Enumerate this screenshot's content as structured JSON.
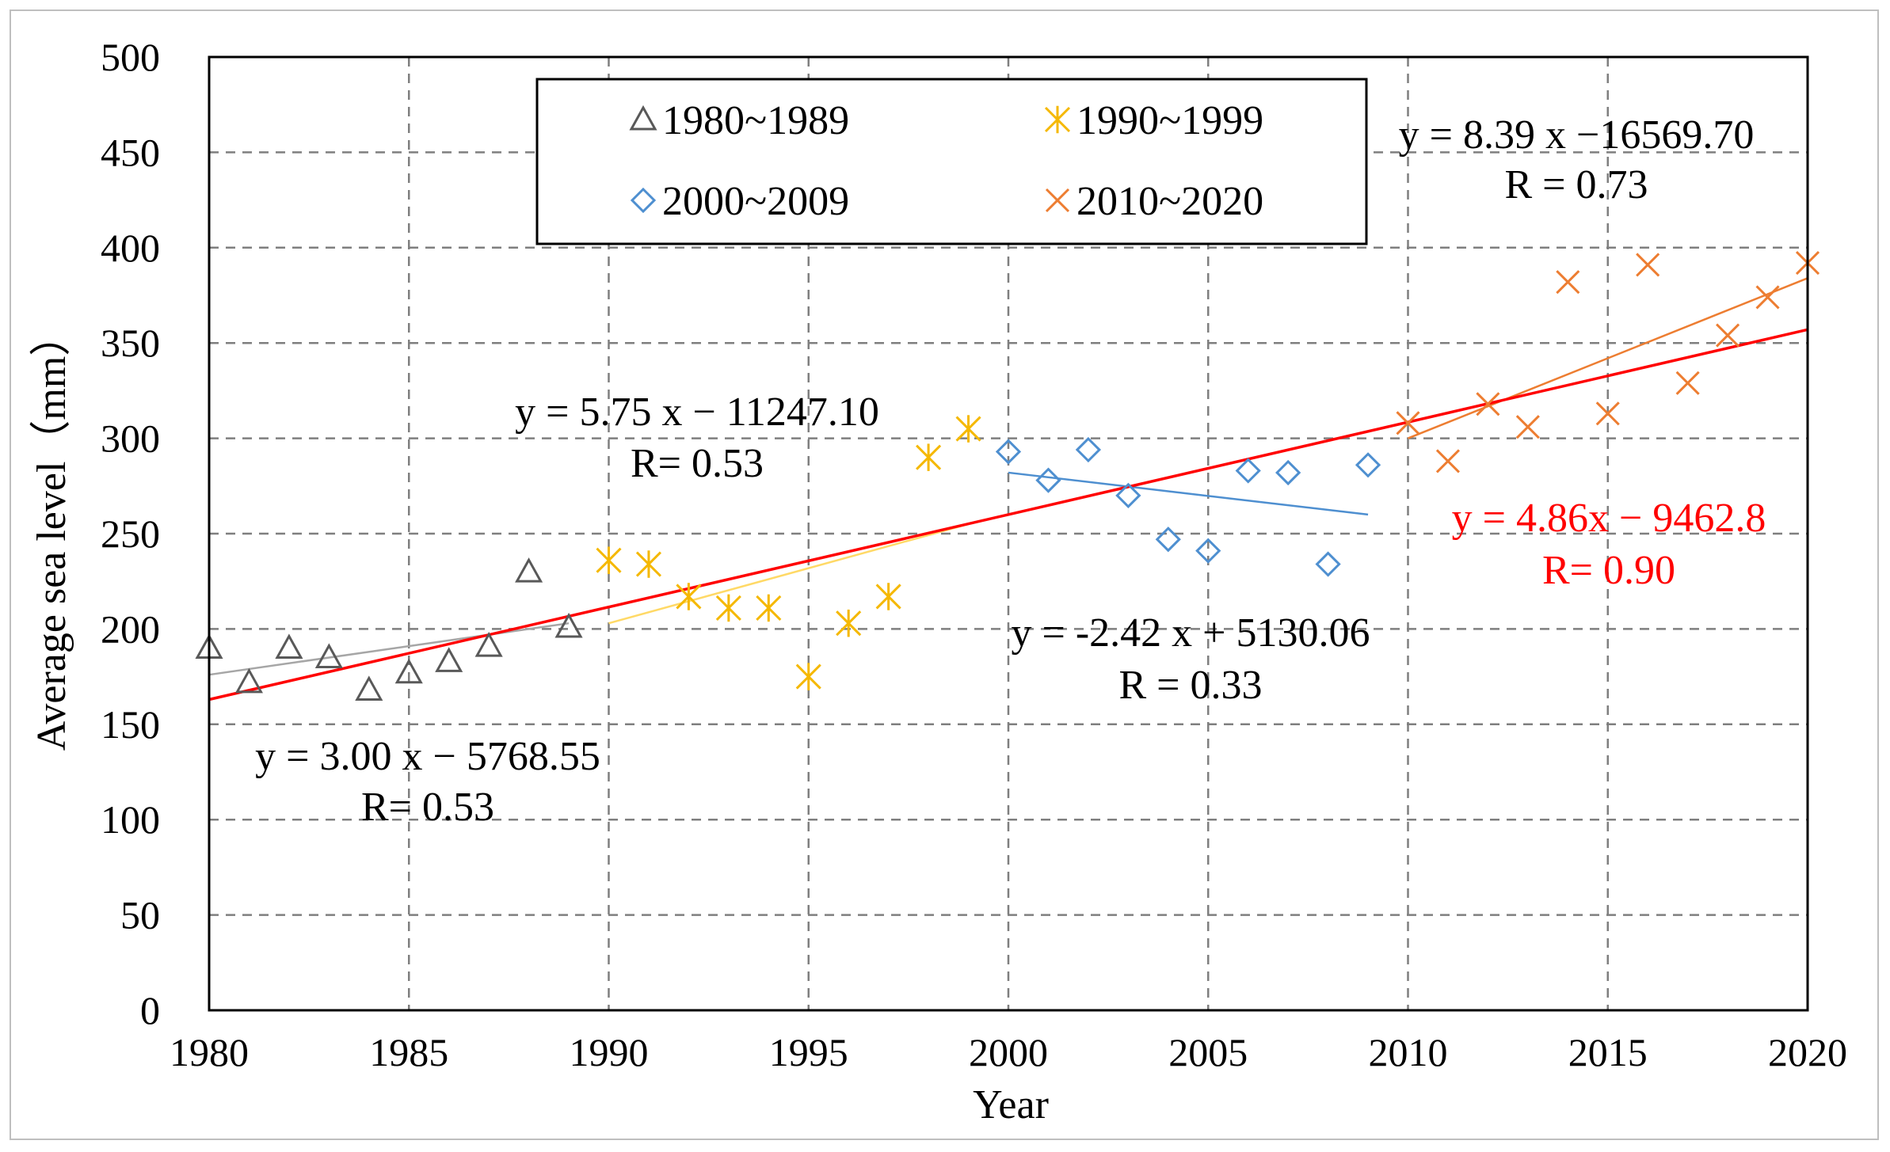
{
  "chart_data": {
    "type": "scatter",
    "title": "",
    "xlabel": "Year",
    "ylabel": "Average sea level（mm）",
    "xlim": [
      1980,
      2020
    ],
    "ylim": [
      0,
      500
    ],
    "xticks": [
      "1980",
      "1985",
      "1990",
      "1995",
      "2000",
      "2005",
      "2010",
      "2015",
      "2020"
    ],
    "yticks": [
      "0",
      "50",
      "100",
      "150",
      "200",
      "250",
      "300",
      "350",
      "400",
      "450",
      "500"
    ],
    "grid": true,
    "legend_position": "top-center",
    "colors": {
      "s1980": "#595959",
      "s1990": "#f5b800",
      "s2000": "#4e8fd0",
      "s2010": "#ed7d31",
      "overall": "#ff0000",
      "trend1980": "#a6a6a6",
      "trend1990": "#ffd966"
    },
    "series": [
      {
        "name": "1980~1989",
        "marker": "triangle",
        "x": [
          1980,
          1981,
          1982,
          1983,
          1984,
          1985,
          1986,
          1987,
          1988,
          1989
        ],
        "y": [
          190,
          172,
          190,
          185,
          168,
          177,
          183,
          191,
          230,
          201
        ]
      },
      {
        "name": "1990~1999",
        "marker": "asterisk",
        "x": [
          1990,
          1991,
          1992,
          1993,
          1994,
          1995,
          1996,
          1997,
          1998,
          1999
        ],
        "y": [
          236,
          234,
          217,
          211,
          211,
          175,
          203,
          217,
          290,
          305
        ]
      },
      {
        "name": "2000~2009",
        "marker": "diamond",
        "x": [
          2000,
          2001,
          2002,
          2003,
          2004,
          2005,
          2006,
          2007,
          2008,
          2009
        ],
        "y": [
          293,
          278,
          294,
          270,
          247,
          241,
          283,
          282,
          234,
          286
        ]
      },
      {
        "name": "2010~2020",
        "marker": "x",
        "x": [
          2010,
          2011,
          2012,
          2013,
          2014,
          2015,
          2016,
          2017,
          2018,
          2019,
          2020
        ],
        "y": [
          308,
          288,
          318,
          306,
          382,
          313,
          391,
          329,
          354,
          374,
          392
        ]
      }
    ],
    "trendlines": [
      {
        "series": "1980~1989",
        "x": [
          1980,
          1989
        ],
        "y": [
          176,
          203
        ]
      },
      {
        "series": "1990~1999",
        "x": [
          1990,
          1999
        ],
        "y": [
          203,
          255
        ]
      },
      {
        "series": "2000~2009",
        "x": [
          2000,
          2009
        ],
        "y": [
          282,
          260
        ]
      },
      {
        "series": "2010~2020",
        "x": [
          2010,
          2020
        ],
        "y": [
          300,
          384
        ]
      },
      {
        "series": "overall",
        "x": [
          1980,
          2020
        ],
        "y": [
          163,
          357
        ]
      }
    ],
    "annotations": {
      "eq1980": {
        "equation": "y = 3.00 x − 5768.55",
        "r": "R= 0.53"
      },
      "eq1990": {
        "equation": "y = 5.75 x − 11247.10",
        "r": "R= 0.53"
      },
      "eq2000": {
        "equation": "y = -2.42 x + 5130.06",
        "r": "R = 0.33"
      },
      "eq2010": {
        "equation": "y = 8.39 x −16569.70",
        "r": "R = 0.73"
      },
      "overall": {
        "equation": "y = 4.86x − 9462.8",
        "r": "R= 0.90"
      }
    }
  }
}
